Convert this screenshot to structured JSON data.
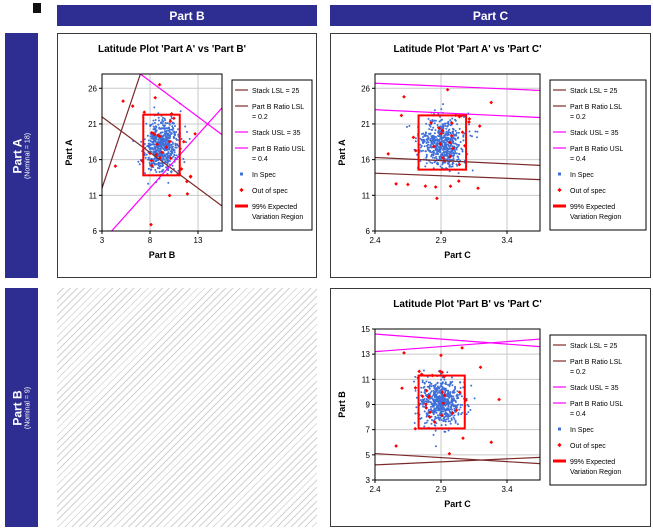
{
  "colors": {
    "header_bg": "#2e2e92",
    "header_text": "#ffffff",
    "dark": "#7b2a2a",
    "magenta": "#ff00ff",
    "in_spec": "#3f6fd8",
    "out_spec": "#ff0000",
    "region": "#ff0000",
    "grid": "#c9c9c9",
    "frame": "#000000"
  },
  "matrix": {
    "col_headers": [
      {
        "label": "Part B"
      },
      {
        "label": "Part C"
      }
    ],
    "row_headers": [
      {
        "label": "Part A",
        "sub": "(Nominal = 18)"
      },
      {
        "label": "Part B",
        "sub": "(Nominal = 9)"
      }
    ]
  },
  "chart_data": [
    {
      "type": "scatter",
      "title": "Latitude Plot 'Part A' vs 'Part B'",
      "xlabel": "Part B",
      "ylabel": "Part A",
      "xlim": [
        3,
        15.5
      ],
      "ylim": [
        6,
        28
      ],
      "xticks": [
        3,
        8,
        13
      ],
      "yticks": [
        6,
        11,
        16,
        21,
        26
      ],
      "grid": true,
      "legend_position": "right",
      "seed": 11,
      "cluster": {
        "cx": 9.2,
        "cy": 18.0,
        "sx": 0.85,
        "sy": 1.9,
        "n": 600
      },
      "out_of_spec": {
        "cx": 9.2,
        "cy": 18.0,
        "sx": 1.5,
        "sy": 3.1,
        "n": 26,
        "extra": [
          [
            9.0,
            26.5
          ],
          [
            5.2,
            24.2
          ],
          [
            4.4,
            15.1
          ],
          [
            12.7,
            19.6
          ],
          [
            8.1,
            6.9
          ],
          [
            11.9,
            11.2
          ],
          [
            6.2,
            23.5
          ]
        ]
      },
      "region": {
        "x1": 7.3,
        "y1": 13.8,
        "x2": 11.1,
        "y2": 22.3
      },
      "lines": [
        {
          "name": "Stack LSL = 25",
          "color": "dark",
          "x1": 3,
          "y1": 22,
          "x2": 15.5,
          "y2": 9.5
        },
        {
          "name": "Part B Ratio LSL = 0.2",
          "color": "dark",
          "x1": 3,
          "y1": 12,
          "x2": 7,
          "y2": 28
        },
        {
          "name": "Stack USL = 35",
          "color": "magenta",
          "x1": 7,
          "y1": 28,
          "x2": 15.5,
          "y2": 19.5
        },
        {
          "name": "Part B Ratio USL = 0.4",
          "color": "magenta",
          "x1": 3,
          "y1": 4.5,
          "x2": 15.5,
          "y2": 23.25
        }
      ],
      "legend": [
        {
          "label": "Stack LSL = 25",
          "type": "line",
          "color": "dark"
        },
        {
          "label": "Part B Ratio LSL = 0.2",
          "label_lines": [
            "Part B Ratio LSL",
            "= 0.2"
          ],
          "type": "line",
          "color": "dark"
        },
        {
          "label": "Stack USL = 35",
          "type": "line",
          "color": "magenta"
        },
        {
          "label": "Part B Ratio USL = 0.4",
          "label_lines": [
            "Part B Ratio USL",
            "= 0.4"
          ],
          "type": "line",
          "color": "magenta"
        },
        {
          "label": "In Spec",
          "type": "point_in",
          "color": "in_spec"
        },
        {
          "label": "Out of spec",
          "type": "point_out",
          "color": "out_spec"
        },
        {
          "label": "99% Expected Variation Region",
          "label_lines": [
            "99% Expected",
            "Variation Region"
          ],
          "type": "region",
          "color": "region"
        }
      ]
    },
    {
      "type": "scatter",
      "title": "Latitude Plot 'Part A' vs 'Part C'",
      "xlabel": "Part C",
      "ylabel": "Part A",
      "xlim": [
        2.4,
        3.65
      ],
      "ylim": [
        6,
        28
      ],
      "xticks": [
        2.4,
        2.9,
        3.4
      ],
      "yticks": [
        6,
        11,
        16,
        21,
        26
      ],
      "grid": true,
      "legend_position": "right",
      "seed": 22,
      "cluster": {
        "cx": 2.91,
        "cy": 18.3,
        "sx": 0.08,
        "sy": 1.7,
        "n": 600
      },
      "out_of_spec": {
        "cx": 2.91,
        "cy": 18.3,
        "sx": 0.13,
        "sy": 3.0,
        "n": 30,
        "extra": [
          [
            2.62,
            24.8
          ],
          [
            3.28,
            24.0
          ],
          [
            2.56,
            12.6
          ],
          [
            3.18,
            12.0
          ],
          [
            2.95,
            25.8
          ],
          [
            2.5,
            16.8
          ]
        ]
      },
      "region": {
        "x1": 2.73,
        "y1": 14.6,
        "x2": 3.09,
        "y2": 22.2
      },
      "lines": [
        {
          "name": "Stack LSL = 25",
          "color": "dark",
          "x1": 2.4,
          "y1": 16.3,
          "x2": 3.65,
          "y2": 15.2
        },
        {
          "name": "Part B Ratio LSL = 0.2",
          "color": "dark",
          "x1": 2.4,
          "y1": 14.1,
          "x2": 3.65,
          "y2": 13.2
        },
        {
          "name": "Stack USL = 35",
          "color": "magenta",
          "x1": 2.4,
          "y1": 26.7,
          "x2": 3.65,
          "y2": 25.7
        },
        {
          "name": "Part B Ratio USL = 0.4",
          "color": "magenta",
          "x1": 2.4,
          "y1": 23.0,
          "x2": 3.65,
          "y2": 21.9
        }
      ],
      "legend": [
        {
          "label": "Stack LSL = 25",
          "type": "line",
          "color": "dark"
        },
        {
          "label": "Part B Ratio LSL = 0.2",
          "label_lines": [
            "Part B Ratio LSL",
            "= 0.2"
          ],
          "type": "line",
          "color": "dark"
        },
        {
          "label": "Stack USL = 35",
          "type": "line",
          "color": "magenta"
        },
        {
          "label": "Part B Ratio USL = 0.4",
          "label_lines": [
            "Part B Ratio USL",
            "= 0.4"
          ],
          "type": "line",
          "color": "magenta"
        },
        {
          "label": "In Spec",
          "type": "point_in",
          "color": "in_spec"
        },
        {
          "label": "Out of spec",
          "type": "point_out",
          "color": "out_spec"
        },
        {
          "label": "99% Expected Variation Region",
          "label_lines": [
            "99% Expected",
            "Variation Region"
          ],
          "type": "region",
          "color": "region"
        }
      ]
    },
    {
      "type": "scatter",
      "title": "Latitude Plot 'Part B' vs 'Part C'",
      "xlabel": "Part C",
      "ylabel": "Part B",
      "xlim": [
        2.4,
        3.65
      ],
      "ylim": [
        3,
        15
      ],
      "xticks": [
        2.4,
        2.9,
        3.4
      ],
      "yticks": [
        3,
        5,
        7,
        9,
        11,
        13,
        15
      ],
      "grid": true,
      "legend_position": "right",
      "seed": 33,
      "cluster": {
        "cx": 2.9,
        "cy": 9.15,
        "sx": 0.08,
        "sy": 0.95,
        "n": 600
      },
      "out_of_spec": {
        "cx": 2.9,
        "cy": 9.15,
        "sx": 0.13,
        "sy": 1.5,
        "n": 30,
        "extra": [
          [
            2.62,
            13.1
          ],
          [
            3.06,
            13.5
          ],
          [
            2.56,
            5.7
          ],
          [
            3.28,
            6.0
          ],
          [
            2.9,
            12.9
          ],
          [
            3.34,
            9.4
          ]
        ]
      },
      "region": {
        "x1": 2.73,
        "y1": 7.1,
        "x2": 3.08,
        "y2": 11.3
      },
      "lines": [
        {
          "name": "Stack LSL = 25",
          "color": "dark",
          "x1": 2.4,
          "y1": 5.1,
          "x2": 3.65,
          "y2": 4.3
        },
        {
          "name": "Part B Ratio LSL = 0.2",
          "color": "dark",
          "x1": 2.4,
          "y1": 4.2,
          "x2": 3.65,
          "y2": 4.8
        },
        {
          "name": "Stack USL = 35",
          "color": "magenta",
          "x1": 2.4,
          "y1": 14.6,
          "x2": 3.65,
          "y2": 13.6
        },
        {
          "name": "Part B Ratio USL = 0.4",
          "color": "magenta",
          "x1": 2.4,
          "y1": 13.2,
          "x2": 3.65,
          "y2": 14.2
        }
      ],
      "legend": [
        {
          "label": "Stack LSL = 25",
          "type": "line",
          "color": "dark"
        },
        {
          "label": "Part B Ratio LSL = 0.2",
          "label_lines": [
            "Part B Ratio LSL",
            "= 0.2"
          ],
          "type": "line",
          "color": "dark"
        },
        {
          "label": "Stack USL = 35",
          "type": "line",
          "color": "magenta"
        },
        {
          "label": "Part B Ratio USL = 0.4",
          "label_lines": [
            "Part B Ratio USL",
            "= 0.4"
          ],
          "type": "line",
          "color": "magenta"
        },
        {
          "label": "In Spec",
          "type": "point_in",
          "color": "in_spec"
        },
        {
          "label": "Out of spec",
          "type": "point_out",
          "color": "out_spec"
        },
        {
          "label": "99% Expected Variation Region",
          "label_lines": [
            "99% Expected",
            "Variation Region"
          ],
          "type": "region",
          "color": "region"
        }
      ]
    }
  ]
}
